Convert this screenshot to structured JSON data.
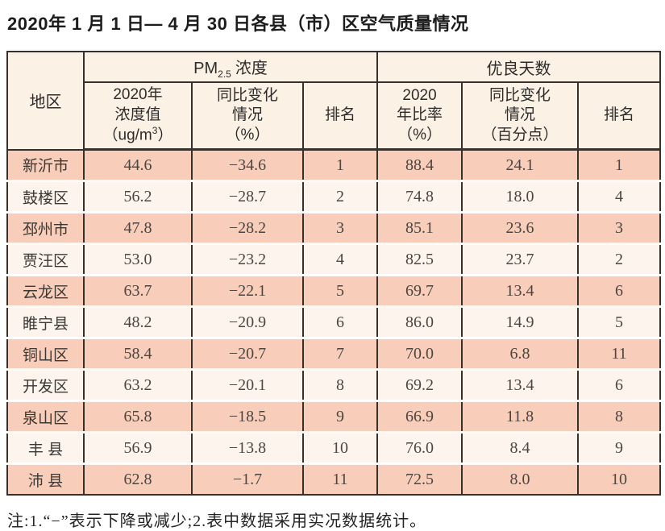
{
  "title": "2020年 1 月 1 日— 4 月 30 日各县（市）区空气质量情况",
  "footnote": "注:1.“−”表示下降或减少;2.表中数据采用实况数据统计。",
  "colors": {
    "border": "#37312b",
    "stripe_odd": "#f8cdba",
    "stripe_even": "#fdf4ee",
    "header_bg": "#fbf1e5"
  },
  "table": {
    "region_header": "地区",
    "pm25_group": {
      "prefix": "PM",
      "sub": "2.5",
      "suffix": "浓度"
    },
    "good_days_group": "优良天数",
    "sub_headers": {
      "pm_value": {
        "line1": "2020年",
        "line2": "浓度值",
        "line3_pre": "（ug/m",
        "line3_sup": "3",
        "line3_post": "）"
      },
      "pm_change": {
        "line1": "同比变化",
        "line2": "情况",
        "line3": "（%）"
      },
      "pm_rank": "排名",
      "ratio": {
        "line1": "2020",
        "line2": "年比率",
        "line3": "（%）"
      },
      "ratio_change": {
        "line1": "同比变化",
        "line2": "情况",
        "line3": "（百分点）"
      },
      "ratio_rank": "排名"
    }
  },
  "chart_data": {
    "type": "table",
    "title": "2020年1月1日—4月30日各县（市）区空气质量情况",
    "column_groups": [
      {
        "label": "PM2.5浓度",
        "columns": [
          2,
          3,
          4
        ]
      },
      {
        "label": "优良天数",
        "columns": [
          5,
          6,
          7
        ]
      }
    ],
    "columns": [
      "地区",
      "2020年浓度值（ug/m³）",
      "同比变化情况（%）",
      "排名",
      "2020年比率（%）",
      "同比变化情况（百分点）",
      "排名"
    ],
    "rows": [
      [
        "新沂市",
        "44.6",
        "−34.6",
        "1",
        "88.4",
        "24.1",
        "1"
      ],
      [
        "鼓楼区",
        "56.2",
        "−28.7",
        "2",
        "74.8",
        "18.0",
        "4"
      ],
      [
        "邳州市",
        "47.8",
        "−28.2",
        "3",
        "85.1",
        "23.6",
        "3"
      ],
      [
        "贾汪区",
        "53.0",
        "−23.2",
        "4",
        "82.5",
        "23.7",
        "2"
      ],
      [
        "云龙区",
        "63.7",
        "−22.1",
        "5",
        "69.7",
        "13.4",
        "6"
      ],
      [
        "睢宁县",
        "48.2",
        "−20.9",
        "6",
        "86.0",
        "14.9",
        "5"
      ],
      [
        "铜山区",
        "58.4",
        "−20.7",
        "7",
        "70.0",
        "6.8",
        "11"
      ],
      [
        "开发区",
        "63.2",
        "−20.1",
        "8",
        "69.2",
        "13.4",
        "6"
      ],
      [
        "泉山区",
        "65.8",
        "−18.5",
        "9",
        "66.9",
        "11.8",
        "8"
      ],
      [
        "丰 县",
        "56.9",
        "−13.8",
        "10",
        "76.0",
        "8.4",
        "9"
      ],
      [
        "沛 县",
        "62.8",
        "−1.7",
        "11",
        "72.5",
        "8.0",
        "10"
      ]
    ],
    "footnote": "注:1.“−”表示下降或减少;2.表中数据采用实况数据统计。"
  }
}
